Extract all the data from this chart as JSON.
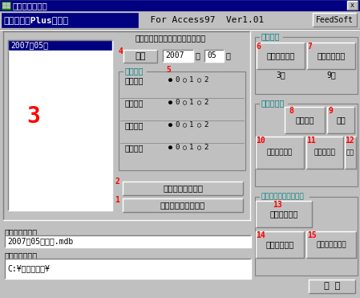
{
  "title_bar": "メインメニュー",
  "title_bar_bg": "#000080",
  "title_bar_fg": "#ffffff",
  "window_bg": "#c0c0c0",
  "header_bold": "材料過不足Plus梱包材",
  "header_rest": "  For Access97  Ver1.01",
  "header_bold_bg": "#000080",
  "header_bold_fg": "#ffffff",
  "feedsoft_btn": "FeedSoft",
  "select_text": "左リストから選択してください。",
  "start_btn": "開始",
  "list_item": "2007年05月",
  "year_val": "2007",
  "month_val": "05",
  "label_3": "3",
  "label_4": "4",
  "small_setting_label": "小数設定",
  "label_5": "5",
  "radio_rows": [
    {
      "label": "製品単価"
    },
    {
      "label": "製品数量"
    },
    {
      "label": "材料単価"
    },
    {
      "label": "材料数量"
    }
  ],
  "btn2_text": "フォルダーの変更",
  "btn1_text": "新規ファイルの作成",
  "label_1": "1",
  "label_2": "2",
  "file_label": "使用ファイル：",
  "file_value": "2007年05月在庫.mdb",
  "folder_label": "使用フォルダ：",
  "folder_value": "C:¥材料過不足¥",
  "master_section": "マスター",
  "btn6_text": "製品マスター",
  "btn6_label": "6",
  "btn7_text": "材料マスター",
  "btn7_label": "7",
  "master_count6": "3件",
  "master_count7": "9件",
  "daily_section": "日常データ",
  "btn8_text": "製品投入",
  "btn8_label": "8",
  "btn9_text": "一覧",
  "btn9_label": "9",
  "btn10_text": "材料月末在庫",
  "btn10_label": "10",
  "btn11_text": "材料入出庫",
  "btn11_label": "11",
  "btn12_text": "一覧",
  "btn12_label": "12",
  "production_section": "生産計画・過不足計算",
  "btn13_text": "今月生産計画",
  "btn13_label": "13",
  "btn14_text": "来月生産計画",
  "btn14_label": "14",
  "btn15_text": "来々月生産計画",
  "btn15_label": "15",
  "end_btn": "終 了",
  "teal": "#008080",
  "red": "#ff0000",
  "gray": "#c0c0c0",
  "white": "#ffffff",
  "black": "#000000",
  "dark_gray": "#808080",
  "navy": "#000080",
  "light_teal": "#9dc9c9"
}
